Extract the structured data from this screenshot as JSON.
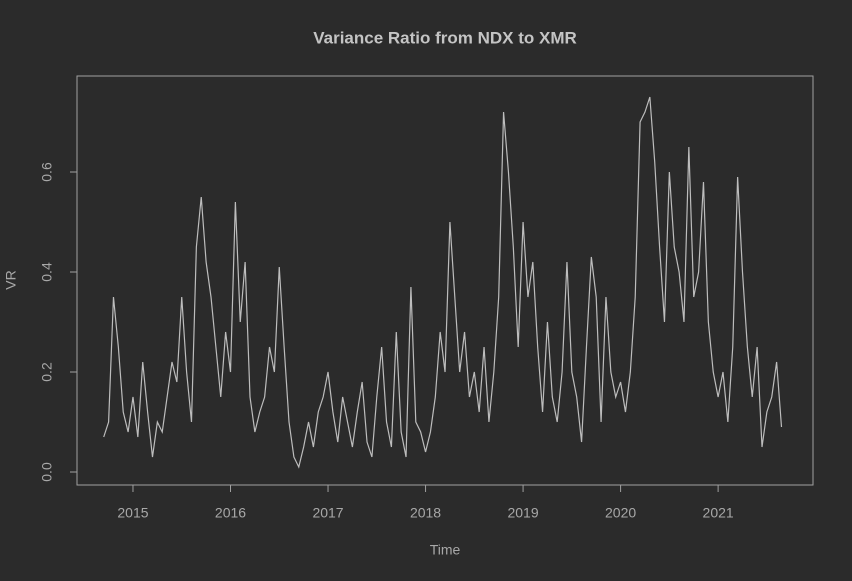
{
  "chart_data": {
    "type": "line",
    "title": "Variance Ratio from NDX to XMR",
    "x_label": "Time",
    "y_label": "VR",
    "x": [
      2014.7,
      2014.75,
      2014.8,
      2014.85,
      2014.9,
      2014.95,
      2015,
      2015.05,
      2015.1,
      2015.15,
      2015.2,
      2015.25,
      2015.3,
      2015.35,
      2015.4,
      2015.45,
      2015.5,
      2015.55,
      2015.6,
      2015.65,
      2015.7,
      2015.75,
      2015.8,
      2015.85,
      2015.9,
      2015.95,
      2016,
      2016.05,
      2016.1,
      2016.15,
      2016.2,
      2016.25,
      2016.3,
      2016.35,
      2016.4,
      2016.45,
      2016.5,
      2016.55,
      2016.6,
      2016.65,
      2016.7,
      2016.75,
      2016.8,
      2016.85,
      2016.9,
      2016.95,
      2017,
      2017.05,
      2017.1,
      2017.15,
      2017.2,
      2017.25,
      2017.3,
      2017.35,
      2017.4,
      2017.45,
      2017.5,
      2017.55,
      2017.6,
      2017.65,
      2017.7,
      2017.75,
      2017.8,
      2017.85,
      2017.9,
      2017.95,
      2018,
      2018.05,
      2018.1,
      2018.15,
      2018.2,
      2018.25,
      2018.3,
      2018.35,
      2018.4,
      2018.45,
      2018.5,
      2018.55,
      2018.6,
      2018.65,
      2018.7,
      2018.75,
      2018.8,
      2018.85,
      2018.9,
      2018.95,
      2019,
      2019.05,
      2019.1,
      2019.15,
      2019.2,
      2019.25,
      2019.3,
      2019.35,
      2019.4,
      2019.45,
      2019.5,
      2019.55,
      2019.6,
      2019.65,
      2019.7,
      2019.75,
      2019.8,
      2019.85,
      2019.9,
      2019.95,
      2020,
      2020.05,
      2020.1,
      2020.15,
      2020.2,
      2020.25,
      2020.3,
      2020.35,
      2020.4,
      2020.45,
      2020.5,
      2020.55,
      2020.6,
      2020.65,
      2020.7,
      2020.75,
      2020.8,
      2020.85,
      2020.9,
      2020.95,
      2021,
      2021.05,
      2021.1,
      2021.15,
      2021.2,
      2021.25,
      2021.3,
      2021.35,
      2021.4,
      2021.45,
      2021.5,
      2021.55,
      2021.6,
      2021.65
    ],
    "values": [
      0.07,
      0.1,
      0.35,
      0.25,
      0.12,
      0.08,
      0.15,
      0.07,
      0.22,
      0.12,
      0.03,
      0.1,
      0.08,
      0.15,
      0.22,
      0.18,
      0.35,
      0.2,
      0.1,
      0.45,
      0.55,
      0.42,
      0.35,
      0.25,
      0.15,
      0.28,
      0.2,
      0.54,
      0.3,
      0.42,
      0.15,
      0.08,
      0.12,
      0.15,
      0.25,
      0.2,
      0.41,
      0.25,
      0.1,
      0.03,
      0.01,
      0.05,
      0.1,
      0.05,
      0.12,
      0.15,
      0.2,
      0.12,
      0.06,
      0.15,
      0.1,
      0.05,
      0.12,
      0.18,
      0.06,
      0.03,
      0.15,
      0.25,
      0.1,
      0.05,
      0.28,
      0.08,
      0.03,
      0.37,
      0.1,
      0.08,
      0.04,
      0.08,
      0.15,
      0.28,
      0.2,
      0.5,
      0.35,
      0.2,
      0.28,
      0.15,
      0.2,
      0.12,
      0.25,
      0.1,
      0.2,
      0.35,
      0.72,
      0.6,
      0.45,
      0.25,
      0.5,
      0.35,
      0.42,
      0.25,
      0.12,
      0.3,
      0.15,
      0.1,
      0.2,
      0.42,
      0.2,
      0.15,
      0.06,
      0.25,
      0.43,
      0.35,
      0.1,
      0.35,
      0.2,
      0.15,
      0.18,
      0.12,
      0.2,
      0.35,
      0.7,
      0.72,
      0.75,
      0.62,
      0.45,
      0.3,
      0.6,
      0.45,
      0.4,
      0.3,
      0.65,
      0.35,
      0.4,
      0.58,
      0.3,
      0.2,
      0.15,
      0.2,
      0.1,
      0.25,
      0.59,
      0.4,
      0.25,
      0.15,
      0.25,
      0.05,
      0.12,
      0.15,
      0.22,
      0.09
    ],
    "color": "#bdbdbd",
    "xlim": [
      2014.426,
      2021.973
    ],
    "xticks": [
      2015,
      2016,
      2017,
      2018,
      2019,
      2020,
      2021
    ],
    "ylim": [
      -0.026,
      0.792
    ],
    "yticks": [
      {
        "value": 0,
        "label": "0.0"
      },
      0.2,
      0.4,
      0.6
    ]
  }
}
